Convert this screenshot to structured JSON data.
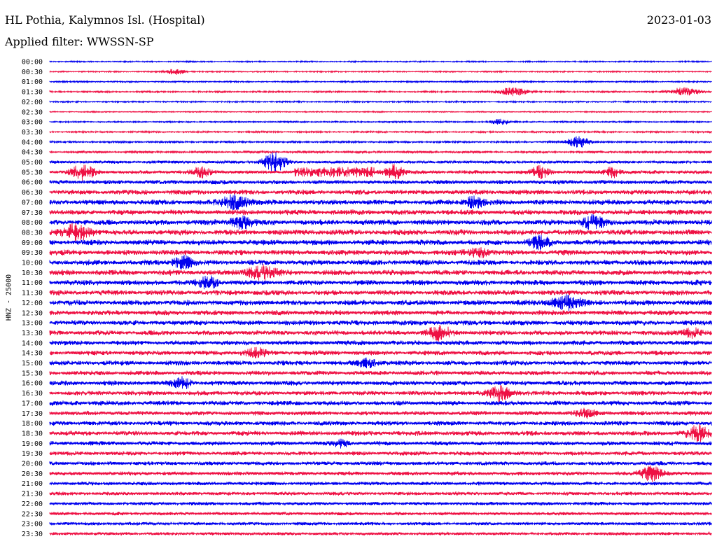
{
  "header": {
    "station": "HL Pothia, Kalymnos Isl. (Hospital)",
    "date": "2023-01-03",
    "filter_label": "Applied filter: WWSSN-SP"
  },
  "chart_data": {
    "type": "line",
    "title": "HL Pothia, Kalymnos Isl. (Hospital)",
    "subtitle": "Applied filter: WWSSN-SP",
    "ylabel": "HNZ - 25000",
    "xlabel": "",
    "grid": false,
    "trace_colors": [
      "#0000ee",
      "#ee1144"
    ],
    "row_labels": [
      "00:00",
      "00:30",
      "01:00",
      "01:30",
      "02:00",
      "02:30",
      "03:00",
      "03:30",
      "04:00",
      "04:30",
      "05:00",
      "05:30",
      "06:00",
      "06:30",
      "07:00",
      "07:30",
      "08:00",
      "08:30",
      "09:00",
      "09:30",
      "10:00",
      "10:30",
      "11:00",
      "11:30",
      "12:00",
      "12:30",
      "13:00",
      "13:30",
      "14:00",
      "14:30",
      "15:00",
      "15:30",
      "16:00",
      "16:30",
      "17:00",
      "17:30",
      "18:00",
      "18:30",
      "19:00",
      "19:30",
      "20:00",
      "20:30",
      "21:00",
      "21:30",
      "22:00",
      "22:30",
      "23:00",
      "23:30"
    ],
    "noise_amplitude": [
      0.8,
      0.8,
      0.9,
      1.0,
      0.9,
      0.7,
      0.9,
      1.0,
      1.1,
      1.3,
      1.8,
      2.2,
      2.6,
      3.0,
      3.2,
      3.2,
      3.4,
      3.4,
      3.4,
      3.3,
      3.3,
      3.3,
      3.2,
      3.2,
      3.3,
      3.1,
      3.1,
      3.0,
      2.9,
      2.9,
      2.9,
      2.8,
      2.9,
      2.8,
      2.9,
      2.7,
      2.8,
      2.9,
      2.6,
      2.5,
      2.5,
      2.4,
      2.3,
      2.2,
      2.1,
      2.0,
      2.0,
      1.9
    ],
    "events": [
      {
        "row": 1,
        "pos": 0.19,
        "amp": 4,
        "width": 0.01
      },
      {
        "row": 3,
        "pos": 0.7,
        "amp": 6,
        "width": 0.015
      },
      {
        "row": 3,
        "pos": 0.96,
        "amp": 6,
        "width": 0.015
      },
      {
        "row": 6,
        "pos": 0.68,
        "amp": 4,
        "width": 0.01
      },
      {
        "row": 8,
        "pos": 0.8,
        "amp": 8,
        "width": 0.012
      },
      {
        "row": 10,
        "pos": 0.34,
        "amp": 13,
        "width": 0.012
      },
      {
        "row": 11,
        "pos": 0.05,
        "amp": 10,
        "width": 0.012
      },
      {
        "row": 11,
        "pos": 0.23,
        "amp": 7,
        "width": 0.01
      },
      {
        "row": 11,
        "pos": 0.52,
        "amp": 10,
        "width": 0.01
      },
      {
        "row": 11,
        "pos": 0.74,
        "amp": 8,
        "width": 0.01
      },
      {
        "row": 11,
        "pos": 0.85,
        "amp": 8,
        "width": 0.008
      },
      {
        "row": 14,
        "pos": 0.28,
        "amp": 9,
        "width": 0.015
      },
      {
        "row": 14,
        "pos": 0.64,
        "amp": 8,
        "width": 0.01
      },
      {
        "row": 16,
        "pos": 0.29,
        "amp": 8,
        "width": 0.012
      },
      {
        "row": 16,
        "pos": 0.82,
        "amp": 8,
        "width": 0.012
      },
      {
        "row": 17,
        "pos": 0.04,
        "amp": 11,
        "width": 0.015
      },
      {
        "row": 18,
        "pos": 0.74,
        "amp": 9,
        "width": 0.01
      },
      {
        "row": 19,
        "pos": 0.65,
        "amp": 6,
        "width": 0.01
      },
      {
        "row": 20,
        "pos": 0.2,
        "amp": 9,
        "width": 0.01
      },
      {
        "row": 21,
        "pos": 0.32,
        "amp": 9,
        "width": 0.015
      },
      {
        "row": 22,
        "pos": 0.24,
        "amp": 8,
        "width": 0.01
      },
      {
        "row": 24,
        "pos": 0.78,
        "amp": 9,
        "width": 0.015
      },
      {
        "row": 27,
        "pos": 0.59,
        "amp": 9,
        "width": 0.012
      },
      {
        "row": 27,
        "pos": 0.97,
        "amp": 6,
        "width": 0.01
      },
      {
        "row": 29,
        "pos": 0.31,
        "amp": 6,
        "width": 0.012
      },
      {
        "row": 30,
        "pos": 0.48,
        "amp": 6,
        "width": 0.01
      },
      {
        "row": 32,
        "pos": 0.2,
        "amp": 7,
        "width": 0.01
      },
      {
        "row": 33,
        "pos": 0.68,
        "amp": 10,
        "width": 0.012
      },
      {
        "row": 35,
        "pos": 0.81,
        "amp": 5,
        "width": 0.01
      },
      {
        "row": 37,
        "pos": 0.98,
        "amp": 10,
        "width": 0.012
      },
      {
        "row": 38,
        "pos": 0.44,
        "amp": 5,
        "width": 0.008
      },
      {
        "row": 41,
        "pos": 0.91,
        "amp": 10,
        "width": 0.012
      }
    ],
    "long_event": {
      "row": 11,
      "start": 0.37,
      "end": 0.49,
      "amp": 8
    }
  }
}
